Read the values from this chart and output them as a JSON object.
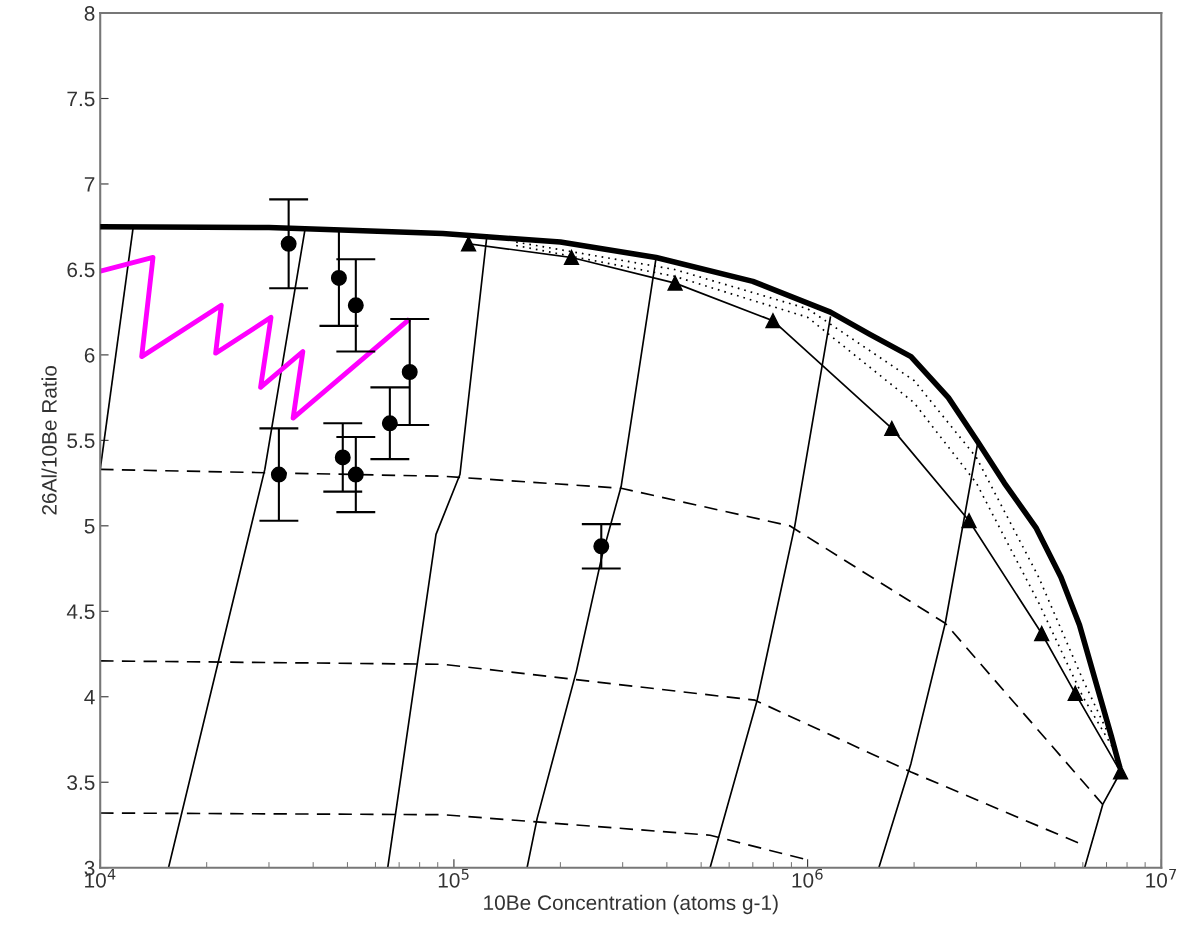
{
  "chart_data": {
    "type": "line",
    "xlabel": "10Be Concentration (atoms g-1)",
    "ylabel": "26Al/10Be Ratio",
    "log": "x",
    "grid": false,
    "legend": false,
    "xlim": [
      10000,
      10000000
    ],
    "xticks": [
      {
        "value": 10000,
        "label": "10$^{4}$"
      },
      {
        "value": 100000,
        "label": "10$^{5}$"
      },
      {
        "value": 1000000,
        "label": "10$^{6}$"
      },
      {
        "value": 10000000,
        "label": "10$^{7}$"
      }
    ],
    "ylim": [
      3,
      8
    ],
    "yticks": [
      3,
      3.5,
      4,
      4.5,
      5,
      5.5,
      6,
      6.5,
      7,
      7.5,
      8
    ],
    "series": [
      {
        "color": "#000000",
        "line_style": "solid",
        "marker": "none",
        "x": [
          10000,
          30000,
          93000,
          200000,
          373000,
          700000,
          1160000,
          1500000,
          1960000,
          2500000,
          3030000,
          3600000,
          4420000,
          5200000,
          5870000,
          6500000,
          7220000,
          7600000
        ],
        "values": [
          6.75,
          6.745,
          6.71,
          6.66,
          6.57,
          6.43,
          6.25,
          6.12,
          5.99,
          5.75,
          5.49,
          5.25,
          4.99,
          4.7,
          4.42,
          4.1,
          3.77,
          3.6
        ]
      },
      {
        "type": "line",
        "color": "#000000",
        "line_style": "dotted",
        "marker": "none",
        "x": [
          150000,
          420000,
          1000000,
          2000000,
          3000000,
          4500000,
          6000000,
          7400000
        ],
        "values": [
          6.66,
          6.5,
          6.27,
          5.85,
          5.4,
          4.7,
          4.1,
          3.7
        ]
      },
      {
        "type": "line",
        "color": "#000000",
        "line_style": "dotted",
        "marker": "none",
        "x": [
          150000,
          420000,
          1000000,
          2000000,
          3000000,
          4500000,
          6000000,
          7400000
        ],
        "values": [
          6.64,
          6.46,
          6.22,
          5.72,
          5.25,
          4.55,
          4.0,
          3.68
        ]
      },
      {
        "type": "line",
        "color": "#000000",
        "line_style": "solid",
        "marker": "triangle",
        "x": [
          110000,
          215000,
          422000,
          798000,
          1730000,
          2860000,
          4590000,
          5710000,
          7670000
        ],
        "values": [
          6.65,
          6.57,
          6.42,
          6.2,
          5.57,
          5.03,
          4.37,
          4.02,
          3.56
        ]
      },
      {
        "type": "line",
        "color": "#000000",
        "line_style": "dashed",
        "marker": "none",
        "x": [
          10000,
          93000,
          297000,
          890000,
          2450000,
          6830000
        ],
        "values": [
          5.33,
          5.29,
          5.22,
          5.0,
          4.43,
          3.37
        ]
      },
      {
        "type": "line",
        "color": "#000000",
        "line_style": "dashed",
        "marker": "none",
        "x": [
          10000,
          93000,
          710000,
          1960000,
          5900000
        ],
        "values": [
          4.21,
          4.19,
          3.98,
          3.56,
          3.14
        ]
      },
      {
        "type": "line",
        "color": "#000000",
        "line_style": "dashed",
        "marker": "none",
        "x": [
          10000,
          93000,
          530000,
          980000
        ],
        "values": [
          3.32,
          3.31,
          3.19,
          3.05
        ]
      },
      {
        "type": "line",
        "color": "#000000",
        "line_style": "solid",
        "marker": "none",
        "x": [
          10000,
          12400
        ],
        "values": [
          5.33,
          6.75
        ]
      },
      {
        "type": "line",
        "color": "#000000",
        "line_style": "solid",
        "marker": "none",
        "x": [
          15600,
          29200,
          37900
        ],
        "values": [
          3.0,
          5.33,
          6.73
        ]
      },
      {
        "type": "line",
        "color": "#000000",
        "line_style": "solid",
        "marker": "none",
        "x": [
          65000,
          89000,
          104000,
          124000
        ],
        "values": [
          3.0,
          4.95,
          5.3,
          6.7
        ]
      },
      {
        "type": "line",
        "color": "#000000",
        "line_style": "solid",
        "marker": "none",
        "x": [
          161000,
          172000,
          222000,
          262000,
          297000,
          373000
        ],
        "values": [
          3.0,
          3.29,
          4.15,
          4.82,
          5.23,
          6.57
        ]
      },
      {
        "type": "line",
        "color": "#000000",
        "line_style": "solid",
        "marker": "none",
        "x": [
          530000,
          720000,
          920000,
          1160000
        ],
        "values": [
          3.0,
          3.98,
          5.0,
          6.22
        ]
      },
      {
        "type": "line",
        "color": "#000000",
        "line_style": "solid",
        "marker": "none",
        "x": [
          1590000,
          1960000,
          2450000,
          3030000
        ],
        "values": [
          3.0,
          3.61,
          4.43,
          5.49
        ]
      },
      {
        "type": "line",
        "color": "#000000",
        "line_style": "solid",
        "marker": "none",
        "x": [
          6070000,
          6830000,
          7670000
        ],
        "values": [
          3.0,
          3.37,
          3.56
        ]
      },
      {
        "type": "line",
        "color": "#ff00ff",
        "line_style": "solid",
        "marker": "none",
        "x": [
          10000,
          14100,
          13100,
          22000,
          21200,
          30400,
          28400,
          37400,
          35100,
          74000
        ],
        "values": [
          6.49,
          6.57,
          5.99,
          6.29,
          6.01,
          6.22,
          5.81,
          6.02,
          5.63,
          6.2
        ]
      },
      {
        "type": "scatter",
        "color": "#000000",
        "marker": "circle",
        "x": [
          34100,
          47300,
          52800,
          75000,
          65900,
          48500,
          52800,
          32000,
          261000
        ],
        "values": [
          6.65,
          6.45,
          6.29,
          5.9,
          5.6,
          5.4,
          5.3,
          5.3,
          4.88
        ],
        "errors": [
          0.26,
          0.28,
          0.27,
          0.31,
          0.21,
          0.2,
          0.22,
          0.27,
          0.13
        ]
      }
    ]
  }
}
